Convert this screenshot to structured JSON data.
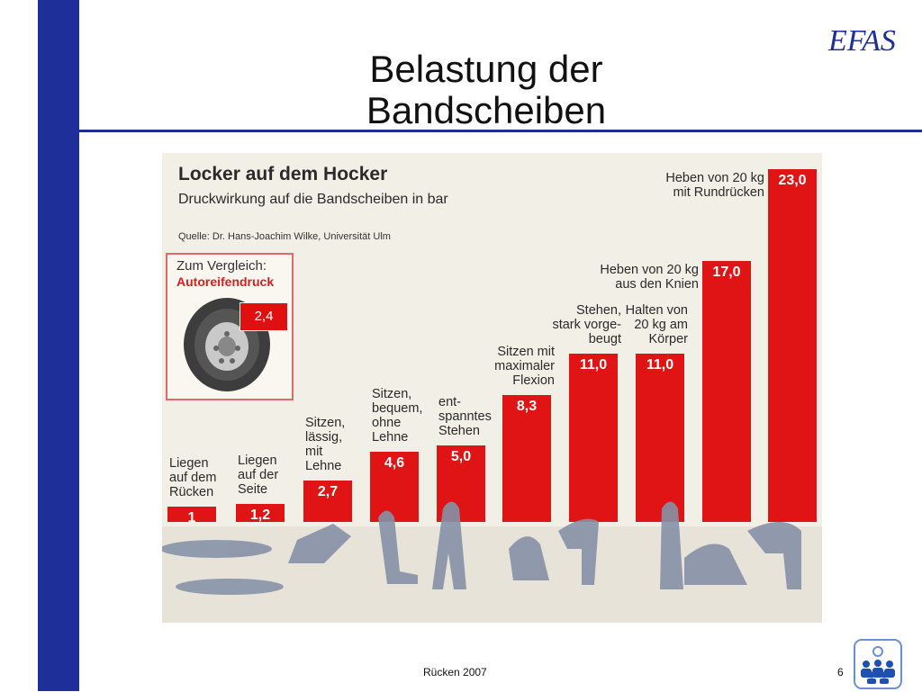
{
  "slide": {
    "title": "Belastung der Bandscheiben",
    "footer": "Rücken 2007",
    "page_number": "6",
    "logo_text": "EFAS",
    "brand_color": "#1f2f9a"
  },
  "comparison": {
    "label": "Zum Vergleich:",
    "highlight": "Autoreifendruck",
    "value": "2,4"
  },
  "chart_data": {
    "type": "bar",
    "title": "Locker auf dem Hocker",
    "subtitle": "Druckwirkung auf die Bandscheiben in bar",
    "source": "Quelle: Dr. Hans-Joachim Wilke, Universität Ulm",
    "categories": [
      "Liegen\nauf dem\nRücken",
      "Liegen\nauf der\nSeite",
      "Sitzen,\nlässig,\nmit\nLehne",
      "Sitzen,\nbequem,\nohne\nLehne",
      "ent-\nspanntes\nStehen",
      "Sitzen mit\nmaximaler\nFlexion",
      "Stehen,\nstark vorge-\nbeugt",
      "Halten von\n20 kg am\nKörper",
      "Heben von 20 kg\naus den Knien",
      "Heben von 20 kg\nmit Rundrücken"
    ],
    "values": [
      1,
      1.2,
      2.7,
      4.6,
      5.0,
      8.3,
      11.0,
      11.0,
      17.0,
      23.0
    ],
    "value_labels": [
      "1",
      "1,2",
      "2,7",
      "4,6",
      "5,0",
      "8,3",
      "11,0",
      "11,0",
      "17,0",
      "23,0"
    ],
    "ylim": [
      0,
      23
    ],
    "bar_color": "#e01414",
    "grid": false,
    "legend": "none"
  }
}
